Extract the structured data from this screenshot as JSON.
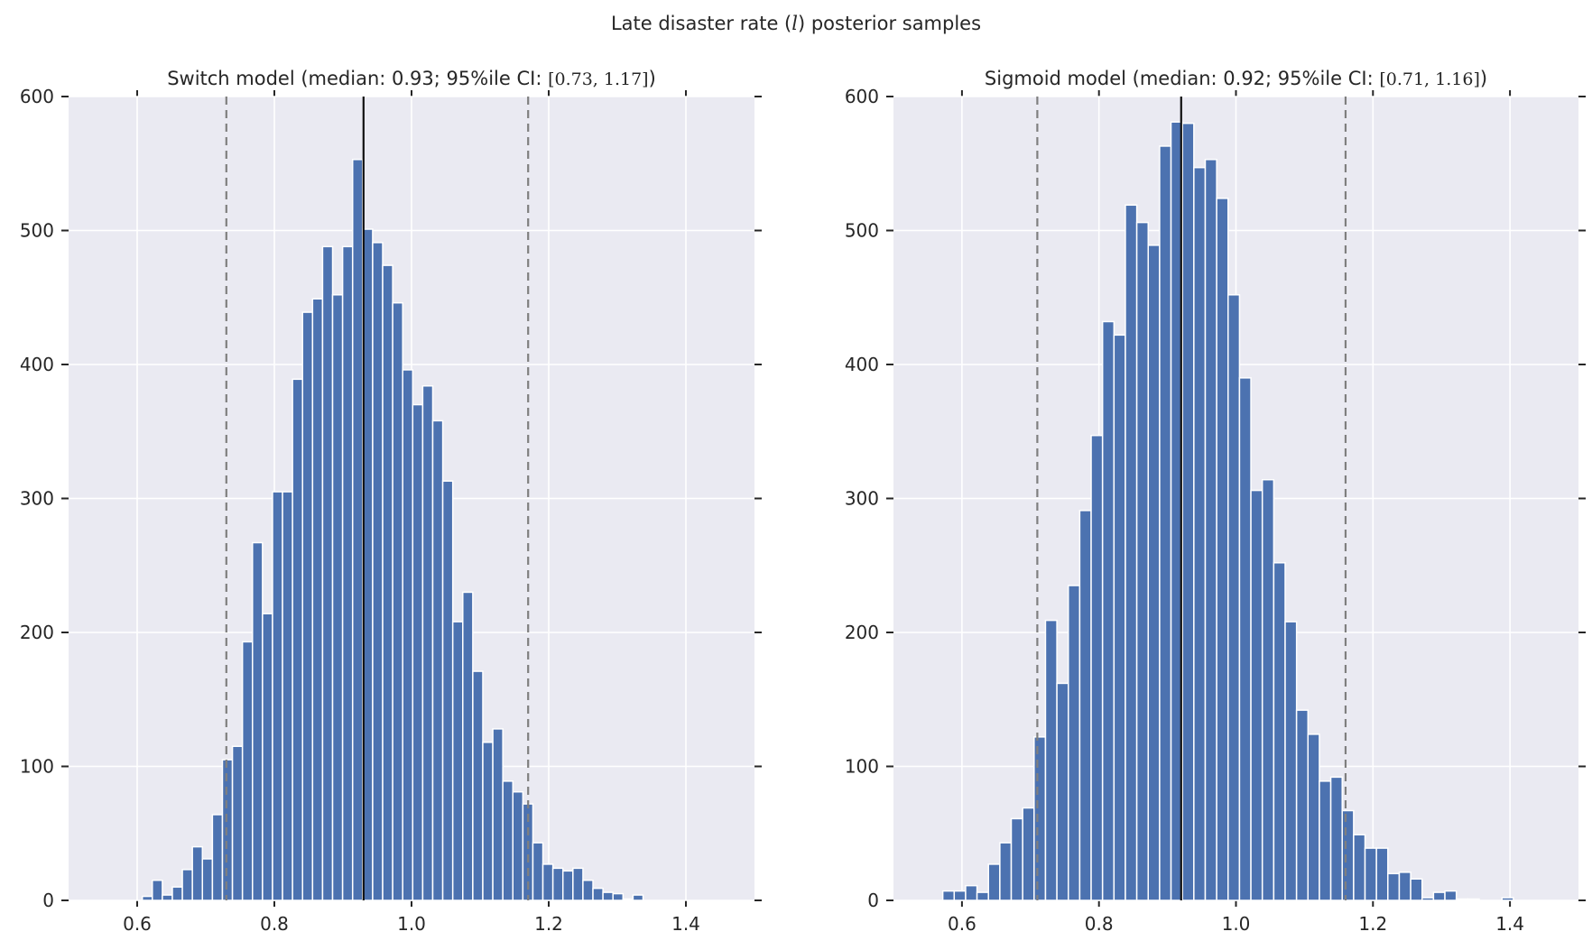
{
  "suptitle": {
    "prefix": "Late disaster rate (",
    "symbol": "l",
    "suffix": ") posterior samples"
  },
  "colors": {
    "background": "#EAEAF2",
    "bar": "#4C72B0",
    "bar_edge": "#FFFFFF",
    "grid": "#FFFFFF",
    "median_line": "#111111",
    "ci_line": "#7F7F7F",
    "text": "#262626"
  },
  "chart_data": [
    {
      "type": "bar",
      "subtype": "histogram",
      "title": {
        "prefix": "Switch model (median: 0.93; 95%ile CI: ",
        "math": "[0.73, 1.17]",
        "suffix": ")"
      },
      "xlim": [
        0.5,
        1.5
      ],
      "ylim": [
        0,
        600
      ],
      "xticks": [
        "0.6",
        "0.8",
        "1.0",
        "1.2",
        "1.4"
      ],
      "yticks": [
        "0",
        "100",
        "200",
        "300",
        "400",
        "500",
        "600"
      ],
      "grid": true,
      "bin_start": 0.6075,
      "bin_width": 0.0146,
      "values": [
        3,
        15,
        4,
        10,
        23,
        40,
        31,
        64,
        105,
        115,
        193,
        267,
        214,
        305,
        305,
        389,
        439,
        449,
        488,
        452,
        488,
        553,
        501,
        491,
        474,
        446,
        396,
        370,
        384,
        358,
        313,
        208,
        230,
        171,
        118,
        128,
        89,
        81,
        72,
        43,
        27,
        24,
        22,
        24,
        15,
        9,
        6,
        5,
        1,
        4
      ],
      "median": 0.93,
      "ci": [
        0.73,
        1.17
      ]
    },
    {
      "type": "bar",
      "subtype": "histogram",
      "title": {
        "prefix": "Sigmoid model (median: 0.92; 95%ile CI: ",
        "math": "[0.71, 1.16]",
        "suffix": ")"
      },
      "xlim": [
        0.5,
        1.5
      ],
      "ylim": [
        0,
        600
      ],
      "xticks": [
        "0.6",
        "0.8",
        "1.0",
        "1.2",
        "1.4"
      ],
      "yticks": [
        "0",
        "100",
        "200",
        "300",
        "400",
        "500",
        "600"
      ],
      "grid": true,
      "bin_start": 0.572,
      "bin_width": 0.01666,
      "values": [
        7,
        7,
        11,
        6,
        27,
        43,
        61,
        69,
        122,
        209,
        162,
        235,
        291,
        347,
        432,
        422,
        519,
        506,
        489,
        563,
        581,
        580,
        547,
        553,
        524,
        452,
        390,
        306,
        314,
        252,
        208,
        142,
        124,
        89,
        92,
        67,
        49,
        39,
        39,
        20,
        21,
        16,
        2,
        6,
        7,
        1,
        1,
        0,
        0,
        2
      ],
      "median": 0.92,
      "ci": [
        0.71,
        1.16
      ]
    }
  ]
}
